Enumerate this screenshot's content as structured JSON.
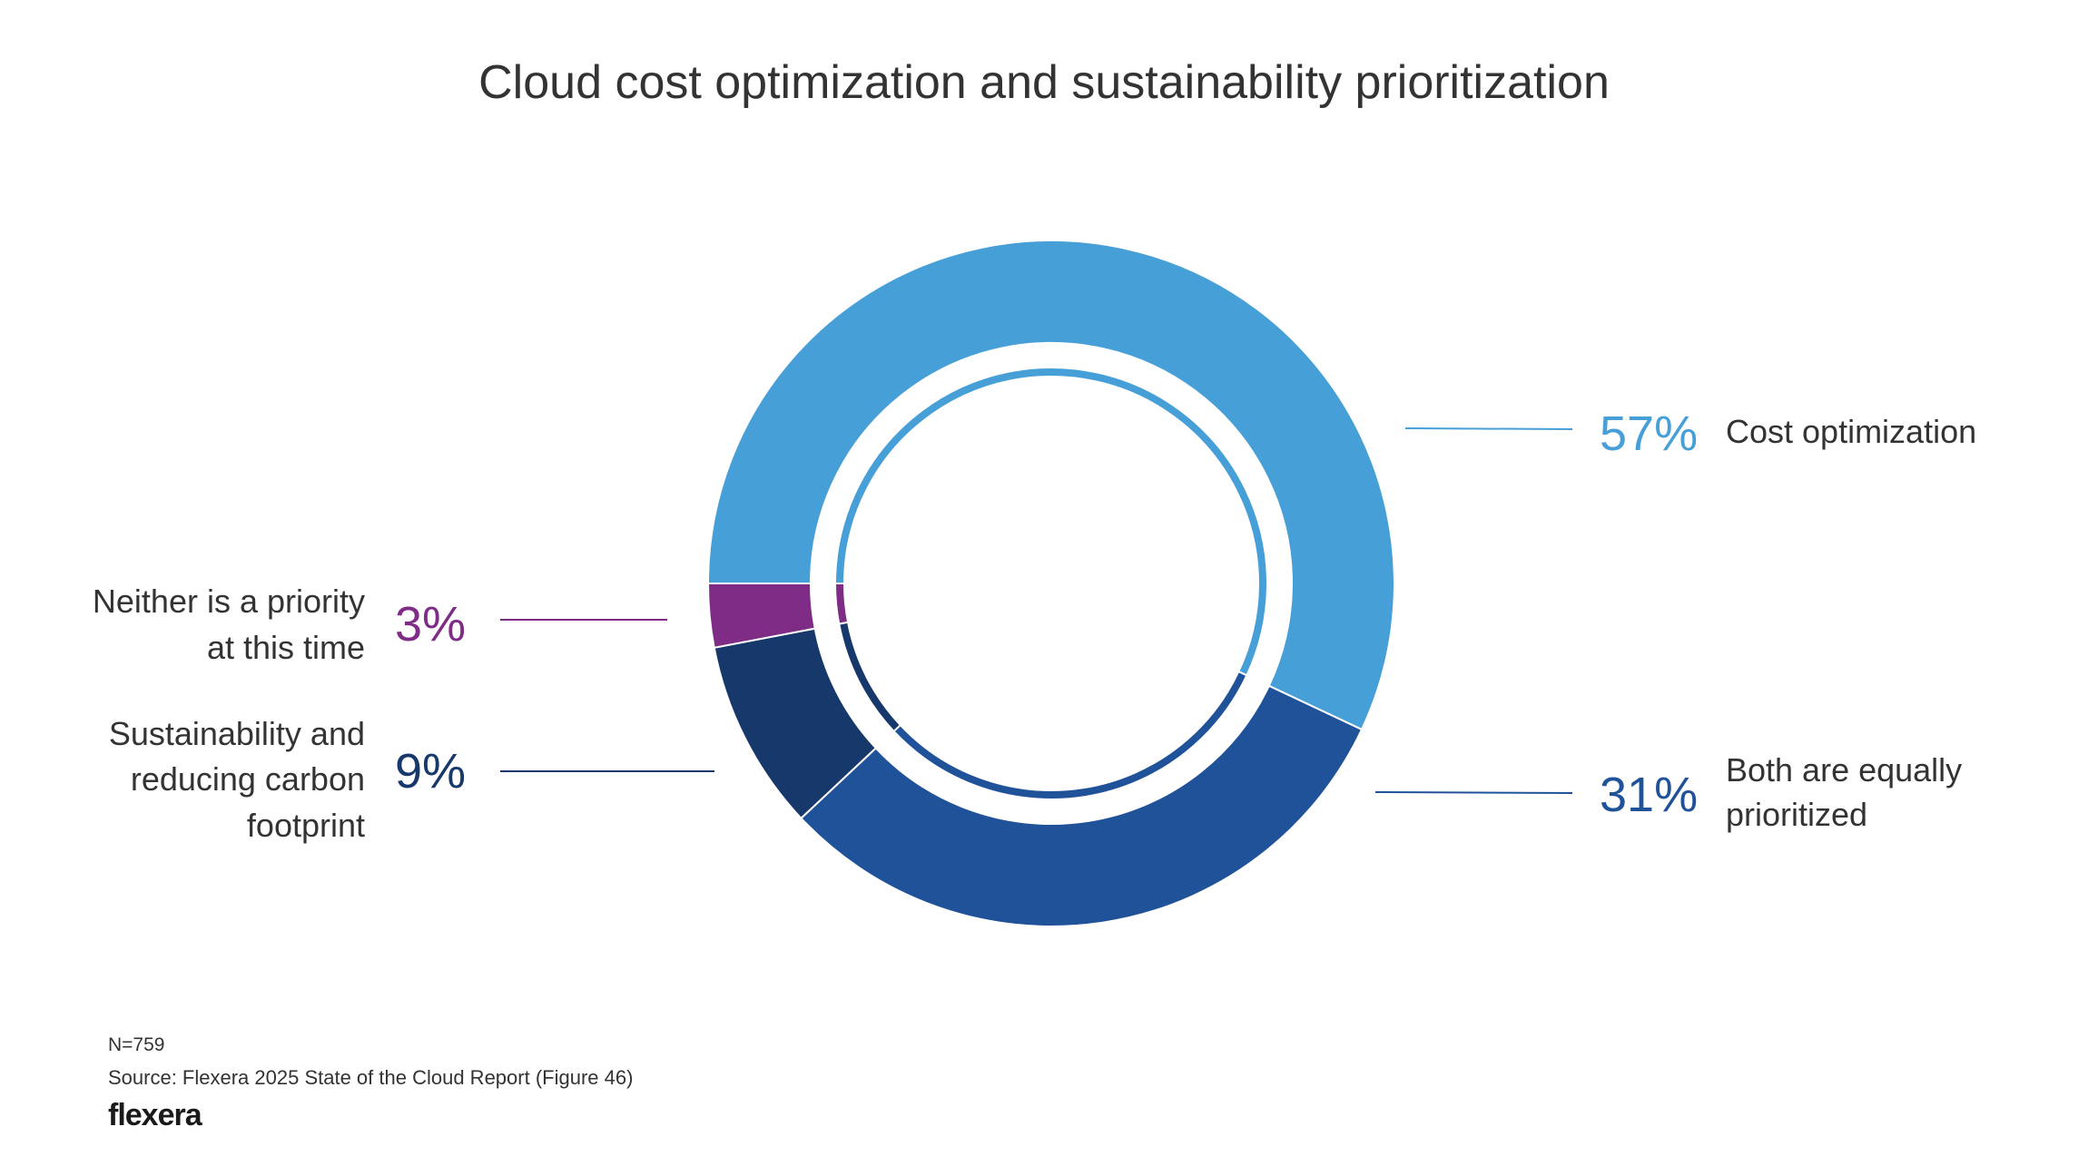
{
  "chart_data": {
    "type": "pie",
    "title": "Cloud cost optimization and sustainability prioritization",
    "slices": [
      {
        "label": "Cost optimization",
        "value": 57,
        "value_label": "57%",
        "color": "#479FD8"
      },
      {
        "label": "Both are equally prioritized",
        "value": 31,
        "value_label": "31%",
        "color": "#20529A"
      },
      {
        "label": "Sustainability and reducing carbon footprint",
        "value": 9,
        "value_label": "9%",
        "color": "#16386B"
      },
      {
        "label": "Neither is a priority at this time",
        "value": 3,
        "value_label": "3%",
        "color": "#7F2C87"
      }
    ],
    "donut": true,
    "start_angle": "9 o'clock, clockwise"
  },
  "labels": {
    "cost": [
      "Cost optimization"
    ],
    "both": [
      "Both are equally",
      "prioritized"
    ],
    "sust": [
      "Sustainability and",
      "reducing carbon",
      "footprint"
    ],
    "neither": [
      "Neither is a priority",
      "at this time"
    ]
  },
  "footer": {
    "n": "N=759",
    "source": "Source: Flexera 2025 State of the Cloud Report (Figure 46)",
    "logo": "flexera"
  }
}
